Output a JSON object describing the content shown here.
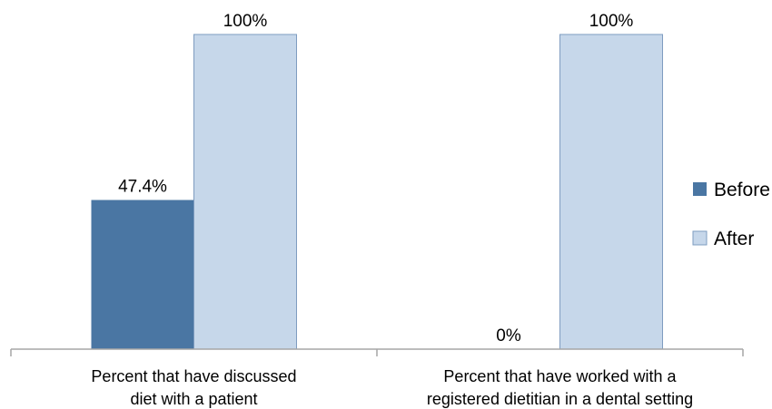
{
  "chart_data": {
    "type": "bar",
    "categories": [
      [
        "Percent that have discussed",
        "diet with a patient"
      ],
      [
        "Percent that have worked with a",
        "registered dietitian in a dental setting"
      ]
    ],
    "series": [
      {
        "name": "Before",
        "values": [
          47.4,
          0
        ],
        "color": "#4a76a3",
        "labels": [
          "47.4%",
          "0%"
        ]
      },
      {
        "name": "After",
        "values": [
          100,
          100
        ],
        "color": "#c6d7ea",
        "labels": [
          "100%",
          "100%"
        ]
      }
    ],
    "ylim": [
      0,
      100
    ],
    "grid": false,
    "legend_position": "right",
    "title": "",
    "xlabel": "",
    "ylabel": ""
  }
}
